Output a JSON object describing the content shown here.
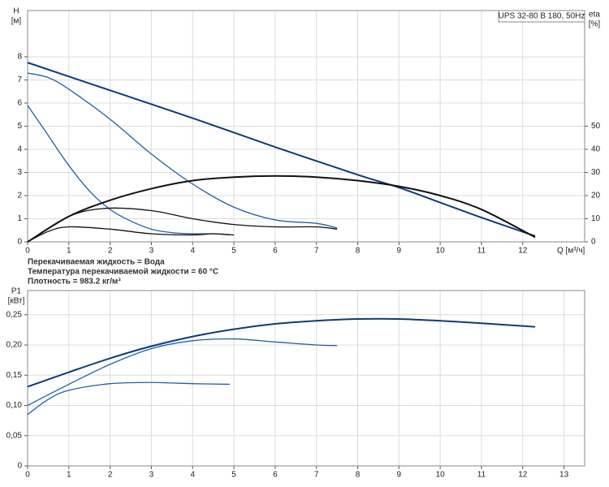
{
  "chart_data": [
    {
      "type": "line",
      "title": "UPS 32-80 B 180, 50Hz",
      "ylabel": "H",
      "yunit": "[м]",
      "y2label": "eta",
      "y2unit": "[%]",
      "xlabel": "Q [м³/ч]",
      "xlim": [
        0,
        13.5
      ],
      "xticks": [
        0,
        1,
        2,
        3,
        4,
        5,
        6,
        7,
        8,
        9,
        10,
        11,
        12
      ],
      "ylim": [
        0,
        10
      ],
      "yticks": [
        0,
        1,
        2,
        3,
        4,
        5,
        6,
        7,
        8
      ],
      "y2lim": [
        0,
        100
      ],
      "y2ticks": [
        0,
        10,
        20,
        30,
        40,
        50
      ],
      "grid": true,
      "annotations": [
        "Перекачиваемая жидкость = Вода",
        "Температура перекачиваемой жидкости = 60 °C",
        "Плотность = 983.2 кг/м³"
      ],
      "series": [
        {
          "color": "#0d3a7a",
          "width": 2,
          "x": [
            0,
            2,
            4,
            6,
            8,
            9,
            10,
            11,
            12.3
          ],
          "values": [
            7.75,
            6.55,
            5.35,
            4.1,
            2.9,
            2.35,
            1.7,
            1.05,
            0.25
          ]
        },
        {
          "color": "#1f5fa8",
          "width": 1.3,
          "x": [
            0,
            0.5,
            1,
            2,
            3,
            4,
            5,
            6,
            7,
            7.5
          ],
          "values": [
            7.3,
            7.1,
            6.6,
            5.3,
            3.8,
            2.5,
            1.5,
            0.95,
            0.8,
            0.6
          ]
        },
        {
          "color": "#1f5fa8",
          "width": 1.3,
          "x": [
            0,
            0.5,
            1,
            1.5,
            2,
            2.5,
            3,
            3.5,
            4,
            4.5,
            4.9
          ],
          "values": [
            5.9,
            4.6,
            3.3,
            2.2,
            1.4,
            0.9,
            0.55,
            0.4,
            0.35,
            0.35,
            0.3
          ]
        },
        {
          "color": "#111111",
          "width": 2,
          "axis": "y2",
          "x": [
            0,
            1,
            2,
            3,
            4,
            5,
            6,
            7,
            8,
            9,
            10,
            11,
            12.3
          ],
          "values": [
            0,
            11,
            18,
            23,
            26.5,
            28,
            28.5,
            28,
            26.5,
            24,
            20,
            14,
            2
          ]
        },
        {
          "color": "#111111",
          "width": 1.3,
          "axis": "y2",
          "x": [
            0,
            1,
            1.9,
            3,
            4,
            5,
            6,
            7,
            7.5
          ],
          "values": [
            0,
            11,
            14.5,
            13.5,
            10,
            7.5,
            6.5,
            6.5,
            5.5
          ]
        },
        {
          "color": "#111111",
          "width": 1.3,
          "axis": "y2",
          "x": [
            0,
            0.5,
            1,
            2,
            3,
            4,
            4.5,
            5
          ],
          "values": [
            0,
            4.5,
            6.5,
            5.5,
            3.5,
            3,
            3.5,
            3
          ]
        }
      ]
    },
    {
      "type": "line",
      "ylabel": "P1",
      "yunit": "[кВт]",
      "xlim": [
        0,
        13.5
      ],
      "xticks": [
        0,
        1,
        2,
        3,
        4,
        5,
        6,
        7,
        8,
        9,
        10,
        11,
        12,
        13
      ],
      "ylim": [
        0,
        0.29
      ],
      "yticks": [
        0,
        {
          "value": 0.05,
          "label": "0,05"
        },
        {
          "value": 0.1,
          "label": "0,10"
        },
        {
          "value": 0.15,
          "label": "0,15"
        },
        {
          "value": 0.2,
          "label": "0,20"
        },
        {
          "value": 0.25,
          "label": "0,25"
        }
      ],
      "grid": true,
      "series": [
        {
          "color": "#0d3a7a",
          "width": 2,
          "x": [
            0,
            1,
            2,
            3,
            4,
            5,
            6,
            7,
            8,
            9,
            10,
            11,
            12.3
          ],
          "values": [
            0.131,
            0.155,
            0.178,
            0.198,
            0.214,
            0.226,
            0.235,
            0.24,
            0.243,
            0.243,
            0.24,
            0.236,
            0.23
          ]
        },
        {
          "color": "#1f5fa8",
          "width": 1.3,
          "x": [
            0,
            1,
            2,
            3,
            4,
            5,
            6,
            7,
            7.5
          ],
          "values": [
            0.1,
            0.135,
            0.168,
            0.194,
            0.207,
            0.21,
            0.205,
            0.2,
            0.199
          ]
        },
        {
          "color": "#1f5fa8",
          "width": 1.3,
          "x": [
            0,
            0.5,
            1,
            2,
            3,
            4,
            4.9
          ],
          "values": [
            0.085,
            0.11,
            0.125,
            0.136,
            0.138,
            0.136,
            0.135
          ]
        }
      ]
    }
  ]
}
